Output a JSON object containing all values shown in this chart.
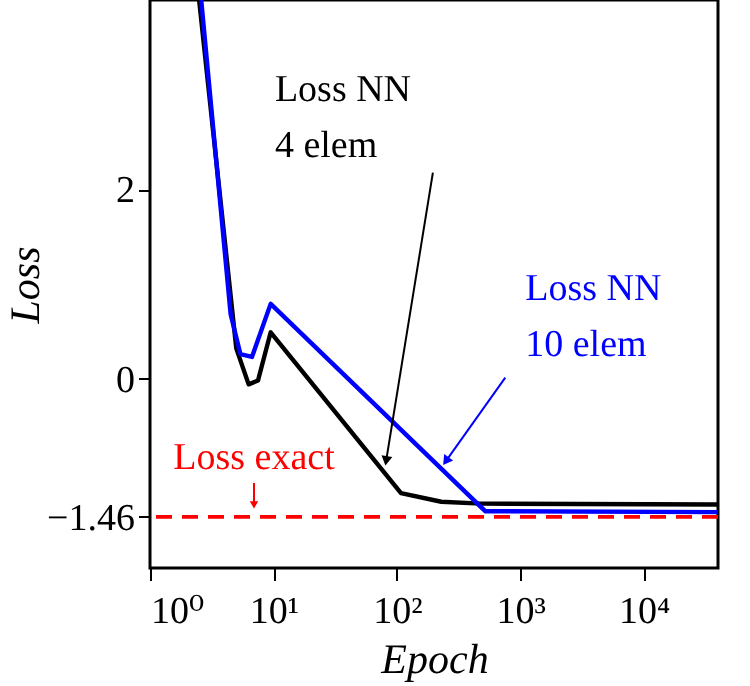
{
  "chart_data": {
    "type": "line",
    "xlabel": "Epoch",
    "ylabel": "Loss",
    "log": "x",
    "xlim": [
      1,
      40000
    ],
    "xticks": [
      {
        "value": 1,
        "label": "10⁰"
      },
      {
        "value": 10,
        "label": "10¹"
      },
      {
        "value": 100,
        "label": "10²"
      },
      {
        "value": 1000,
        "label": "10³"
      },
      {
        "value": 10000,
        "label": "10⁴"
      }
    ],
    "ylim": [
      -2,
      4
    ],
    "yticks": [
      {
        "value": -1.46,
        "label": "−1.46"
      },
      0,
      2
    ],
    "grid": false,
    "series": [
      {
        "color": "#000000",
        "x": [
          2.5,
          5.0,
          6.3,
          7.5,
          9.5,
          108,
          229,
          480,
          40000
        ],
        "values": [
          4,
          0.32,
          -0.06,
          -0.02,
          0.49,
          -1.21,
          -1.3,
          -1.32,
          -1.33
        ]
      },
      {
        "color": "#0000ff",
        "x": [
          2.6,
          4.5,
          5.4,
          6.7,
          9.5,
          520,
          40000
        ],
        "values": [
          4,
          0.68,
          0.26,
          0.23,
          0.79,
          -1.4,
          -1.41
        ]
      }
    ],
    "ref_lines": [
      {
        "axis": "y",
        "value": -1.46,
        "label": "Loss exact",
        "color": "#ff0000",
        "line_style": "dashed"
      }
    ],
    "annotations": [
      {
        "text": "Loss NN\n4 elem",
        "x": 80,
        "y": -0.95
      },
      {
        "text": "Loss NN\n10 elem",
        "x": 229,
        "y": -0.94
      }
    ]
  }
}
